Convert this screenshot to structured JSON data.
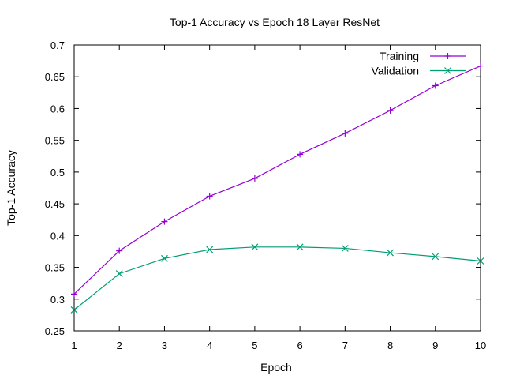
{
  "chart_data": {
    "type": "line",
    "title": "Top-1 Accuracy vs Epoch 18 Layer ResNet",
    "xlabel": "Epoch",
    "ylabel": "Top-1 Accuracy",
    "xlim": [
      1,
      10
    ],
    "ylim": [
      0.25,
      0.7
    ],
    "x": [
      1,
      2,
      3,
      4,
      5,
      6,
      7,
      8,
      9,
      10
    ],
    "xticks": [
      "1",
      "2",
      "3",
      "4",
      "5",
      "6",
      "7",
      "8",
      "9",
      "10"
    ],
    "yticks": [
      "0.25",
      "0.3",
      "0.35",
      "0.4",
      "0.45",
      "0.5",
      "0.55",
      "0.6",
      "0.65",
      "0.7"
    ],
    "grid": false,
    "legend_position": "top-right",
    "series": [
      {
        "name": "Training",
        "color": "#9400d3",
        "marker": "plus",
        "values": [
          0.308,
          0.376,
          0.422,
          0.462,
          0.49,
          0.528,
          0.561,
          0.597,
          0.636,
          0.667
        ]
      },
      {
        "name": "Validation",
        "color": "#009e73",
        "marker": "cross",
        "values": [
          0.283,
          0.34,
          0.364,
          0.378,
          0.382,
          0.382,
          0.38,
          0.373,
          0.367,
          0.36
        ]
      }
    ]
  }
}
